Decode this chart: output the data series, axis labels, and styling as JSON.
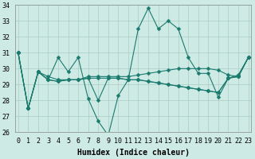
{
  "xlabel": "Humidex (Indice chaleur)",
  "x": [
    0,
    1,
    2,
    3,
    4,
    5,
    6,
    7,
    8,
    9,
    10,
    11,
    12,
    13,
    14,
    15,
    16,
    17,
    18,
    19,
    20,
    21,
    22,
    23
  ],
  "series": [
    [
      31.0,
      27.5,
      29.8,
      29.3,
      30.7,
      29.8,
      30.7,
      28.1,
      26.7,
      25.8,
      28.3,
      29.3,
      32.5,
      33.8,
      32.5,
      33.0,
      32.5,
      30.7,
      29.7,
      29.7,
      28.2,
      29.4,
      29.6,
      30.7
    ],
    [
      31.0,
      27.5,
      29.8,
      29.5,
      29.3,
      29.3,
      29.3,
      29.5,
      29.5,
      29.5,
      29.5,
      29.5,
      29.6,
      29.7,
      29.8,
      29.9,
      30.0,
      30.0,
      30.0,
      30.0,
      29.9,
      29.6,
      29.5,
      30.7
    ],
    [
      31.0,
      27.5,
      29.8,
      29.3,
      29.2,
      29.3,
      29.3,
      29.4,
      29.4,
      29.4,
      29.4,
      29.3,
      29.3,
      29.2,
      29.1,
      29.0,
      28.9,
      28.8,
      28.7,
      28.6,
      28.5,
      29.4,
      29.5,
      30.7
    ],
    [
      31.0,
      27.5,
      29.8,
      29.3,
      29.2,
      29.3,
      29.3,
      29.4,
      28.0,
      29.4,
      29.4,
      29.3,
      29.3,
      29.2,
      29.1,
      29.0,
      28.9,
      28.8,
      28.7,
      28.6,
      28.5,
      29.4,
      29.5,
      30.7
    ]
  ],
  "line_color": "#1a7a6e",
  "marker": "D",
  "marker_size": 2.5,
  "bg_color": "#ceeae4",
  "grid_color": "#aaccc5",
  "ylim": [
    26,
    34
  ],
  "yticks": [
    26,
    27,
    28,
    29,
    30,
    31,
    32,
    33,
    34
  ],
  "xlim": [
    -0.3,
    23.3
  ],
  "label_fontsize": 7,
  "tick_fontsize": 6
}
